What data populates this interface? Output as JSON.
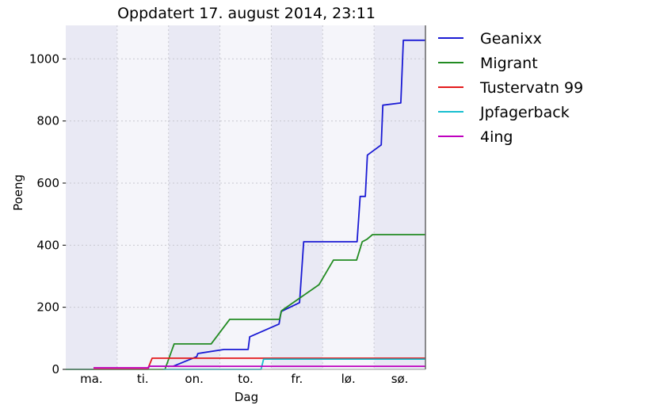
{
  "chart_data": {
    "type": "line",
    "title": "Oppdatert 17. august 2014, 23:11",
    "xlabel": "Dag",
    "ylabel": "Poeng",
    "x_tick_labels": [
      "ma.",
      "ti.",
      "on.",
      "to.",
      "fr.",
      "lø.",
      "sø."
    ],
    "xlim": [
      0,
      7
    ],
    "ylim": [
      0,
      1108
    ],
    "y_ticks": [
      0,
      200,
      400,
      600,
      800,
      1000
    ],
    "grid": true,
    "legend_placement": "outside-right",
    "band_colors": [
      "#e9e9f4",
      "#f5f5fa"
    ],
    "series": [
      {
        "name": "Geanixx",
        "color": "#1a1ad4",
        "points": [
          [
            0,
            0
          ],
          [
            1.6,
            0
          ],
          [
            1.62,
            10
          ],
          [
            2.09,
            10
          ],
          [
            2.55,
            41
          ],
          [
            2.57,
            51
          ],
          [
            3.08,
            64
          ],
          [
            3.55,
            64
          ],
          [
            3.58,
            105
          ],
          [
            4.15,
            146
          ],
          [
            4.19,
            186
          ],
          [
            4.55,
            215
          ],
          [
            4.63,
            411
          ],
          [
            5.67,
            411
          ],
          [
            5.73,
            557
          ],
          [
            5.83,
            557
          ],
          [
            5.87,
            690
          ],
          [
            6.14,
            723
          ],
          [
            6.17,
            851
          ],
          [
            6.52,
            858
          ],
          [
            6.57,
            1060
          ],
          [
            7,
            1060
          ]
        ]
      },
      {
        "name": "Migrant",
        "color": "#228b22",
        "points": [
          [
            0,
            0
          ],
          [
            1.93,
            0
          ],
          [
            2.11,
            82
          ],
          [
            2.83,
            82
          ],
          [
            3.19,
            161
          ],
          [
            4.16,
            161
          ],
          [
            4.2,
            189
          ],
          [
            4.93,
            273
          ],
          [
            5.21,
            352
          ],
          [
            5.66,
            352
          ],
          [
            5.77,
            411
          ],
          [
            5.86,
            419
          ],
          [
            5.97,
            434
          ],
          [
            7,
            434
          ]
        ]
      },
      {
        "name": "Tustervatn 99",
        "color": "#e31a1c",
        "points": [
          [
            0.54,
            3
          ],
          [
            1.6,
            3
          ],
          [
            1.68,
            36
          ],
          [
            7,
            36
          ]
        ]
      },
      {
        "name": "Jpfagerback",
        "color": "#17becf",
        "points": [
          [
            1.9,
            0
          ],
          [
            3.8,
            0
          ],
          [
            3.85,
            33
          ],
          [
            7,
            33
          ]
        ]
      },
      {
        "name": "4ing",
        "color": "#bf00bf",
        "points": [
          [
            0.54,
            5
          ],
          [
            1.6,
            5
          ],
          [
            1.62,
            10
          ],
          [
            7,
            10
          ]
        ]
      }
    ]
  }
}
